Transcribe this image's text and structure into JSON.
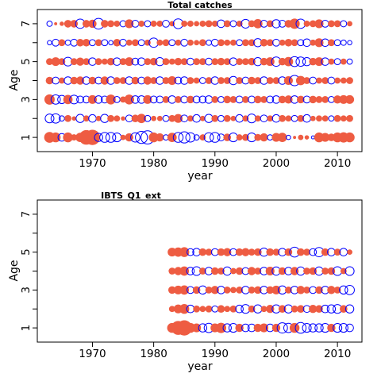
{
  "colors": {
    "positive": "#ee5c42",
    "negative": "#0000ff"
  },
  "chart_data": [
    {
      "type": "scatter",
      "subtype": "bubble",
      "title": "Total catches",
      "xlabel": "year",
      "ylabel": "Age",
      "xlim": [
        1961,
        2014
      ],
      "ylim": [
        0.25,
        7.75
      ],
      "xticks": [
        "1970",
        "1980",
        "1990",
        "2000",
        "2010"
      ],
      "yticks": [
        "1",
        "3",
        "5",
        "7"
      ],
      "years": [
        1963,
        1964,
        1965,
        1966,
        1967,
        1968,
        1969,
        1970,
        1971,
        1972,
        1973,
        1974,
        1975,
        1976,
        1977,
        1978,
        1979,
        1980,
        1981,
        1982,
        1983,
        1984,
        1985,
        1986,
        1987,
        1988,
        1989,
        1990,
        1991,
        1992,
        1993,
        1994,
        1995,
        1996,
        1997,
        1998,
        1999,
        2000,
        2001,
        2002,
        2003,
        2004,
        2005,
        2006,
        2007,
        2008,
        2009,
        2010,
        2011,
        2012
      ],
      "ages": [
        1,
        2,
        3,
        4,
        5,
        6,
        7
      ],
      "residuals": [
        [
          1.2,
          1.0,
          -0.6,
          1.0,
          0.4,
          0.9,
          2.2,
          2.4,
          -0.7,
          -1.0,
          -1.0,
          -0.8,
          0.3,
          0.7,
          -0.9,
          -1.5,
          -1.8,
          1.0,
          0.7,
          -0.3,
          0.9,
          -1.0,
          -1.3,
          -0.9,
          -0.3,
          0.4,
          -0.9,
          -1.0,
          -0.5,
          0.6,
          -0.8,
          0.4,
          0.5,
          -0.8,
          0.5,
          0.7,
          -0.3,
          0.8,
          0.9,
          -0.2,
          0.1,
          0.3,
          0.2,
          -0.1,
          1.0,
          0.8,
          0.6,
          1.0,
          1.1,
          1.0
        ],
        [
          -0.8,
          -0.9,
          -0.3,
          0.5,
          0.2,
          -0.7,
          0.4,
          -0.6,
          0.3,
          -0.7,
          0.5,
          0.4,
          0.2,
          -0.5,
          0.6,
          0.9,
          -0.4,
          0.3,
          0.3,
          -0.4,
          0.5,
          0.8,
          -0.5,
          0.4,
          -0.6,
          0.3,
          -0.7,
          0.5,
          -0.4,
          0.5,
          0.3,
          -0.6,
          0.4,
          -0.8,
          0.4,
          -0.5,
          0.4,
          -0.6,
          0.5,
          0.4,
          -0.4,
          0.5,
          -0.6,
          0.3,
          0.4,
          0.4,
          -0.3,
          0.5,
          0.4,
          0.5
        ],
        [
          1.1,
          -0.9,
          -0.7,
          0.9,
          -0.8,
          -0.5,
          -0.5,
          0.8,
          -0.6,
          -0.5,
          1.0,
          -0.4,
          0.4,
          1.0,
          -0.6,
          -0.6,
          0.8,
          -0.5,
          -0.5,
          0.5,
          -0.6,
          0.5,
          -0.5,
          0.6,
          -0.5,
          -0.5,
          -0.6,
          0.5,
          -0.4,
          0.6,
          0.5,
          -0.5,
          0.5,
          -0.5,
          0.6,
          0.5,
          -0.5,
          -0.6,
          0.6,
          0.7,
          -0.6,
          0.6,
          -0.5,
          0.6,
          0.5,
          0.5,
          -0.4,
          0.7,
          0.8,
          0.8
        ],
        [
          0.6,
          -0.5,
          0.4,
          -0.6,
          0.6,
          0.7,
          -0.6,
          0.6,
          -0.5,
          0.7,
          -0.6,
          0.5,
          0.5,
          -0.6,
          0.6,
          -0.5,
          0.7,
          0.5,
          -0.6,
          0.5,
          0.8,
          -0.5,
          -0.6,
          0.5,
          0.4,
          -0.4,
          0.5,
          -0.6,
          0.5,
          0.5,
          -0.7,
          0.5,
          -0.5,
          0.6,
          0.5,
          -0.6,
          0.5,
          0.5,
          -0.6,
          0.8,
          -1.1,
          0.9,
          0.5,
          -0.5,
          0.4,
          0.5,
          -0.5,
          0.4,
          0.4,
          0.5
        ],
        [
          0.5,
          0.8,
          0.5,
          -0.8,
          0.5,
          0.7,
          0.5,
          -0.6,
          0.5,
          0.4,
          0.6,
          -0.6,
          0.5,
          0.8,
          -0.5,
          -0.6,
          0.5,
          0.6,
          -0.7,
          0.5,
          0.4,
          0.6,
          0.5,
          -0.5,
          0.5,
          0.5,
          -0.5,
          0.5,
          0.6,
          0.5,
          -0.6,
          0.5,
          0.5,
          0.6,
          -0.7,
          0.6,
          0.8,
          -0.9,
          0.6,
          0.9,
          -1.0,
          -0.9,
          -0.7,
          0.6,
          0.8,
          -0.6,
          0.4,
          -0.4,
          0.4,
          -0.3
        ],
        [
          -0.2,
          -0.5,
          0.5,
          -0.3,
          -0.5,
          0.6,
          0.6,
          -0.4,
          0.5,
          -0.4,
          -0.2,
          0.6,
          -0.5,
          0.4,
          0.5,
          -0.4,
          0.4,
          -0.9,
          0.4,
          0.5,
          -0.4,
          0.4,
          -0.5,
          0.4,
          0.3,
          0.5,
          -0.3,
          -0.5,
          0.5,
          0.4,
          0.4,
          -0.4,
          0.5,
          0.5,
          -0.7,
          0.6,
          0.5,
          -0.5,
          0.4,
          0.6,
          0.5,
          -0.4,
          -0.6,
          0.4,
          0.8,
          -0.6,
          0.5,
          -0.4,
          -0.3,
          -0.2
        ],
        [
          -0.3,
          0.1,
          0.2,
          0.6,
          0.6,
          -0.9,
          0.6,
          0.7,
          -1.2,
          0.6,
          0.5,
          0.4,
          -0.4,
          0.8,
          -0.5,
          0.4,
          -0.4,
          0.4,
          0.4,
          -0.5,
          0.3,
          -1.0,
          0.4,
          0.4,
          0.3,
          0.4,
          0.5,
          0.4,
          -0.6,
          0.5,
          -0.4,
          0.4,
          -0.8,
          0.5,
          0.9,
          -0.5,
          0.5,
          -0.7,
          -0.5,
          0.6,
          1.1,
          -0.9,
          0.4,
          0.5,
          0.8,
          -0.5,
          0.5,
          0.5,
          -0.4,
          0.3
        ]
      ]
    },
    {
      "type": "scatter",
      "subtype": "bubble",
      "title": "IBTS_Q1_ext",
      "xlabel": "year",
      "ylabel": "Age",
      "xlim": [
        1961,
        2014
      ],
      "ylim": [
        0.25,
        7.75
      ],
      "xticks": [
        "1970",
        "1980",
        "1990",
        "2000",
        "2010"
      ],
      "yticks": [
        "1",
        "3",
        "5",
        "7"
      ],
      "years": [
        1983,
        1984,
        1985,
        1986,
        1987,
        1988,
        1989,
        1990,
        1991,
        1992,
        1993,
        1994,
        1995,
        1996,
        1997,
        1998,
        1999,
        2000,
        2001,
        2002,
        2003,
        2004,
        2005,
        2006,
        2007,
        2008,
        2009,
        2010,
        2011,
        2012
      ],
      "ages": [
        1,
        2,
        3,
        4,
        5
      ],
      "residuals": [
        [
          1.0,
          2.0,
          2.4,
          1.0,
          0.8,
          -0.7,
          -0.9,
          0.8,
          1.1,
          -0.7,
          -0.8,
          0.7,
          -0.6,
          -0.6,
          0.7,
          0.8,
          -0.6,
          0.7,
          -1.1,
          -0.9,
          1.0,
          -1.2,
          -0.8,
          -0.7,
          -0.7,
          -0.8,
          0.7,
          -0.8,
          -0.8,
          -0.6
        ],
        [
          0.4,
          0.8,
          1.0,
          -0.6,
          0.5,
          0.4,
          0.5,
          -0.4,
          0.6,
          0.4,
          0.5,
          -0.6,
          -0.8,
          0.5,
          -0.7,
          0.4,
          0.7,
          -0.7,
          0.6,
          -0.7,
          0.5,
          0.6,
          -0.5,
          0.7,
          0.6,
          -0.6,
          -0.7,
          -0.8,
          0.6,
          -0.7
        ],
        [
          0.6,
          0.8,
          0.9,
          -0.5,
          0.6,
          -0.7,
          0.5,
          0.7,
          -0.6,
          0.5,
          0.4,
          0.5,
          -0.6,
          0.5,
          0.6,
          -0.6,
          0.6,
          0.8,
          -0.7,
          0.5,
          -0.6,
          0.7,
          0.5,
          -0.5,
          0.6,
          -0.6,
          0.7,
          0.5,
          -0.7,
          -0.9
        ],
        [
          0.5,
          0.7,
          0.9,
          -0.6,
          -0.8,
          0.5,
          -0.6,
          0.6,
          0.5,
          -0.7,
          0.4,
          0.6,
          -0.5,
          0.7,
          0.5,
          -0.6,
          0.8,
          -0.7,
          0.6,
          -0.6,
          0.7,
          -0.7,
          0.5,
          0.6,
          -0.7,
          0.5,
          0.6,
          -0.8,
          0.4,
          -0.8
        ],
        [
          0.8,
          0.9,
          1.0,
          -0.5,
          -0.6,
          0.6,
          0.5,
          -0.5,
          0.6,
          0.7,
          -0.5,
          0.6,
          0.7,
          0.5,
          0.6,
          -0.7,
          0.6,
          0.5,
          -0.6,
          0.6,
          -1.0,
          0.6,
          0.5,
          -0.5,
          -0.9,
          0.6,
          -0.6,
          0.5,
          -0.6,
          0.3
        ]
      ]
    }
  ]
}
